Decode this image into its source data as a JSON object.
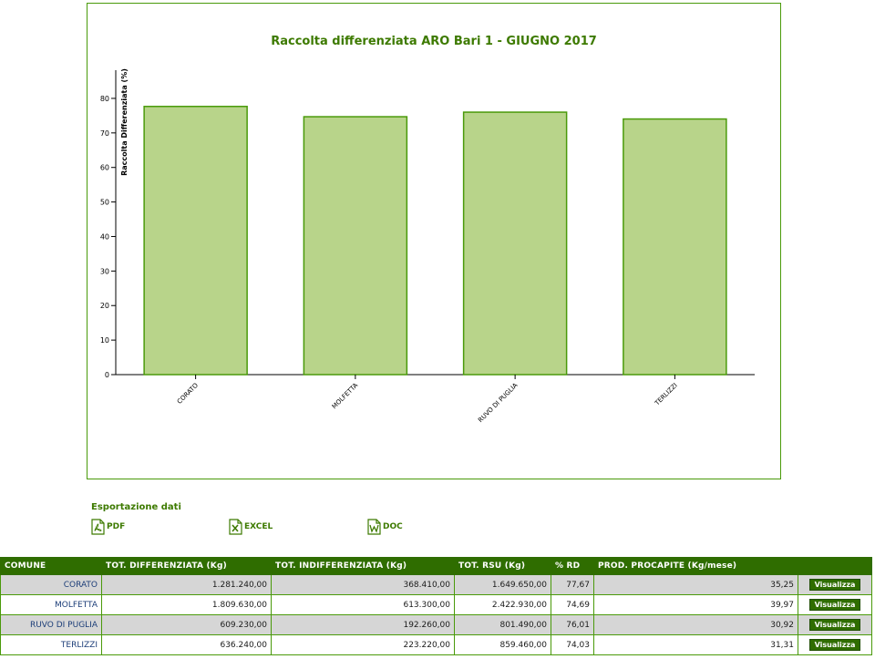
{
  "chart_data": {
    "type": "bar",
    "title": "Raccolta differenziata ARO Bari 1 - GIUGNO 2017",
    "xlabel": "",
    "ylabel": "Raccolta Differenziata (%)",
    "categories": [
      "CORATO",
      "MOLFETTA",
      "RUVO DI PUGLIA",
      "TERLIZZI"
    ],
    "values": [
      77.67,
      74.69,
      76.01,
      74.03
    ],
    "ylim": [
      0,
      85
    ],
    "yticks": [
      0,
      10,
      20,
      30,
      40,
      50,
      60,
      70,
      80
    ],
    "grid": false,
    "bar_color": "#b8d48a",
    "bar_border_color": "#4a9a0a"
  },
  "export": {
    "title": "Esportazione dati",
    "pdf_label": "PDF",
    "excel_label": "EXCEL",
    "doc_label": "DOC"
  },
  "table": {
    "headers": [
      "COMUNE",
      "TOT. DIFFERENZIATA (Kg)",
      "TOT. INDIFFERENZIATA (Kg)",
      "TOT. RSU (Kg)",
      "% RD",
      "PROD. PROCAPITE (Kg/mese)",
      ""
    ],
    "rows": [
      {
        "comune": "CORATO",
        "diff": "1.281.240,00",
        "indiff": "368.410,00",
        "rsu": "1.649.650,00",
        "rd": "77,67",
        "procapite": "35,25",
        "action": "Visualizza"
      },
      {
        "comune": "MOLFETTA",
        "diff": "1.809.630,00",
        "indiff": "613.300,00",
        "rsu": "2.422.930,00",
        "rd": "74,69",
        "procapite": "39,97",
        "action": "Visualizza"
      },
      {
        "comune": "RUVO DI PUGLIA",
        "diff": "609.230,00",
        "indiff": "192.260,00",
        "rsu": "801.490,00",
        "rd": "76,01",
        "procapite": "30,92",
        "action": "Visualizza"
      },
      {
        "comune": "TERLIZZI",
        "diff": "636.240,00",
        "indiff": "223.220,00",
        "rsu": "859.460,00",
        "rd": "74,03",
        "procapite": "31,31",
        "action": "Visualizza"
      }
    ]
  },
  "colors": {
    "accent": "#2f6d00",
    "title": "#3d7a00",
    "comune_text": "#1c3d78"
  },
  "icons": {
    "pdf": "pdf-file-icon",
    "excel": "excel-file-icon",
    "doc": "word-file-icon"
  }
}
